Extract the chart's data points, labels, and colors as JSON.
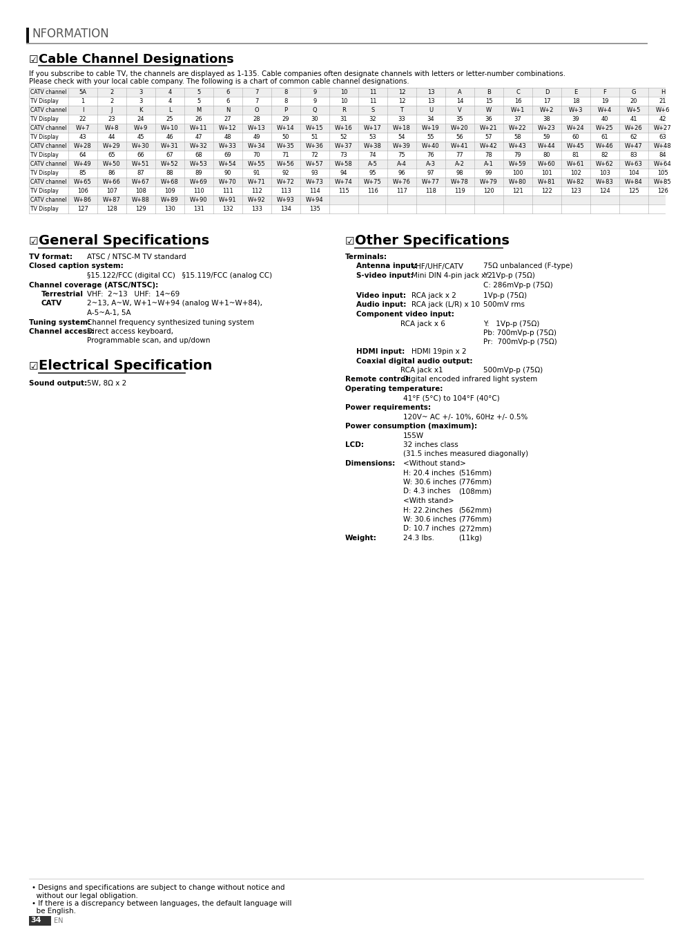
{
  "page_bg": "#ffffff",
  "table_rows": [
    [
      "CATV channel",
      "5A",
      "2",
      "3",
      "4",
      "5",
      "6",
      "7",
      "8",
      "9",
      "10",
      "11",
      "12",
      "13",
      "A",
      "B",
      "C",
      "D",
      "E",
      "F",
      "G",
      "H"
    ],
    [
      "TV Display",
      "1",
      "2",
      "3",
      "4",
      "5",
      "6",
      "7",
      "8",
      "9",
      "10",
      "11",
      "12",
      "13",
      "14",
      "15",
      "16",
      "17",
      "18",
      "19",
      "20",
      "21"
    ],
    [
      "CATV channel",
      "I",
      "J",
      "K",
      "L",
      "M",
      "N",
      "O",
      "P",
      "Q",
      "R",
      "S",
      "T",
      "U",
      "V",
      "W",
      "W+1",
      "W+2",
      "W+3",
      "W+4",
      "W+5",
      "W+6"
    ],
    [
      "TV Display",
      "22",
      "23",
      "24",
      "25",
      "26",
      "27",
      "28",
      "29",
      "30",
      "31",
      "32",
      "33",
      "34",
      "35",
      "36",
      "37",
      "38",
      "39",
      "40",
      "41",
      "42"
    ],
    [
      "CATV channel",
      "W+7",
      "W+8",
      "W+9",
      "W+10",
      "W+11",
      "W+12",
      "W+13",
      "W+14",
      "W+15",
      "W+16",
      "W+17",
      "W+18",
      "W+19",
      "W+20",
      "W+21",
      "W+22",
      "W+23",
      "W+24",
      "W+25",
      "W+26",
      "W+27"
    ],
    [
      "TV Display",
      "43",
      "44",
      "45",
      "46",
      "47",
      "48",
      "49",
      "50",
      "51",
      "52",
      "53",
      "54",
      "55",
      "56",
      "57",
      "58",
      "59",
      "60",
      "61",
      "62",
      "63"
    ],
    [
      "CATV channel",
      "W+28",
      "W+29",
      "W+30",
      "W+31",
      "W+32",
      "W+33",
      "W+34",
      "W+35",
      "W+36",
      "W+37",
      "W+38",
      "W+39",
      "W+40",
      "W+41",
      "W+42",
      "W+43",
      "W+44",
      "W+45",
      "W+46",
      "W+47",
      "W+48"
    ],
    [
      "TV Display",
      "64",
      "65",
      "66",
      "67",
      "68",
      "69",
      "70",
      "71",
      "72",
      "73",
      "74",
      "75",
      "76",
      "77",
      "78",
      "79",
      "80",
      "81",
      "82",
      "83",
      "84"
    ],
    [
      "CATV channel",
      "W+49",
      "W+50",
      "W+51",
      "W+52",
      "W+53",
      "W+54",
      "W+55",
      "W+56",
      "W+57",
      "W+58",
      "A-5",
      "A-4",
      "A-3",
      "A-2",
      "A-1",
      "W+59",
      "W+60",
      "W+61",
      "W+62",
      "W+63",
      "W+64"
    ],
    [
      "TV Display",
      "85",
      "86",
      "87",
      "88",
      "89",
      "90",
      "91",
      "92",
      "93",
      "94",
      "95",
      "96",
      "97",
      "98",
      "99",
      "100",
      "101",
      "102",
      "103",
      "104",
      "105"
    ],
    [
      "CATV channel",
      "W+65",
      "W+66",
      "W+67",
      "W+68",
      "W+69",
      "W+70",
      "W+71",
      "W+72",
      "W+73",
      "W+74",
      "W+75",
      "W+76",
      "W+77",
      "W+78",
      "W+79",
      "W+80",
      "W+81",
      "W+82",
      "W+83",
      "W+84",
      "W+85"
    ],
    [
      "TV Display",
      "106",
      "107",
      "108",
      "109",
      "110",
      "111",
      "112",
      "113",
      "114",
      "115",
      "116",
      "117",
      "118",
      "119",
      "120",
      "121",
      "122",
      "123",
      "124",
      "125",
      "126"
    ],
    [
      "CATV channel",
      "W+86",
      "W+87",
      "W+88",
      "W+89",
      "W+90",
      "W+91",
      "W+92",
      "W+93",
      "W+94",
      "",
      "",
      "",
      "",
      "",
      "",
      "",
      "",
      "",
      "",
      "",
      ""
    ],
    [
      "TV Display",
      "127",
      "128",
      "129",
      "130",
      "131",
      "132",
      "133",
      "134",
      "135",
      "",
      "",
      "",
      "",
      "",
      "",
      "",
      "",
      "",
      "",
      "",
      ""
    ]
  ],
  "footer_notes": [
    "• Designs and specifications are subject to change without notice and",
    "  without our legal obligation.",
    "• If there is a discrepancy between languages, the default language will",
    "  be English."
  ],
  "page_number": "34"
}
